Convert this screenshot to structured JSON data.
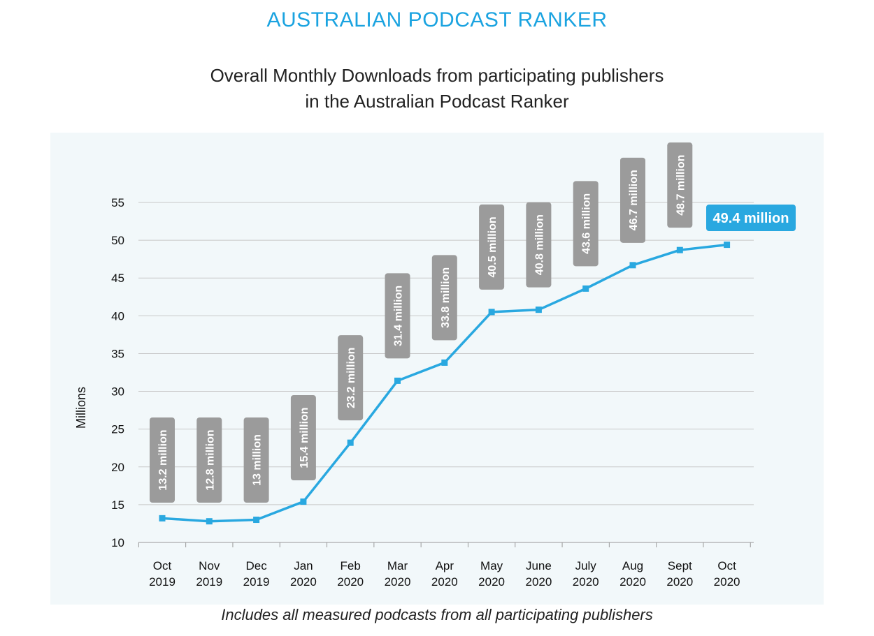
{
  "brand": "AUSTRALIAN PODCAST RANKER",
  "title_lines": [
    "Overall Monthly Downloads from participating publishers",
    "in the Australian Podcast Ranker"
  ],
  "footnote": "Includes all measured podcasts from all participating publishers",
  "colors": {
    "brand": "#1aa3e0",
    "line": "#29a8e0",
    "label_box": "#9b9b9b",
    "highlight_box": "#29a8e0",
    "panel": "#f2f8fa",
    "grid": "#c8c8c8"
  },
  "chart_data": {
    "type": "line",
    "ylabel": "Millions",
    "xlabel": "",
    "ylim": [
      10,
      55
    ],
    "yticks": [
      10,
      15,
      20,
      25,
      30,
      35,
      40,
      45,
      50,
      55
    ],
    "grid": true,
    "categories": [
      [
        "Oct",
        "2019"
      ],
      [
        "Nov",
        "2019"
      ],
      [
        "Dec",
        "2019"
      ],
      [
        "Jan",
        "2020"
      ],
      [
        "Feb",
        "2020"
      ],
      [
        "Mar",
        "2020"
      ],
      [
        "Apr",
        "2020"
      ],
      [
        "May",
        "2020"
      ],
      [
        "June",
        "2020"
      ],
      [
        "July",
        "2020"
      ],
      [
        "Aug",
        "2020"
      ],
      [
        "Sept",
        "2020"
      ],
      [
        "Oct",
        "2020"
      ]
    ],
    "values": [
      13.2,
      12.8,
      13,
      15.4,
      23.2,
      31.4,
      33.8,
      40.5,
      40.8,
      43.6,
      46.7,
      48.7,
      49.4
    ],
    "data_labels": [
      "13.2 million",
      "12.8 million",
      "13 million",
      "15.4 million",
      "23.2 million",
      "31.4 million",
      "33.8 million",
      "40.5 million",
      "40.8 million",
      "43.6 million",
      "46.7 million",
      "48.7 million",
      "49.4 million"
    ],
    "highlight_last": true
  }
}
